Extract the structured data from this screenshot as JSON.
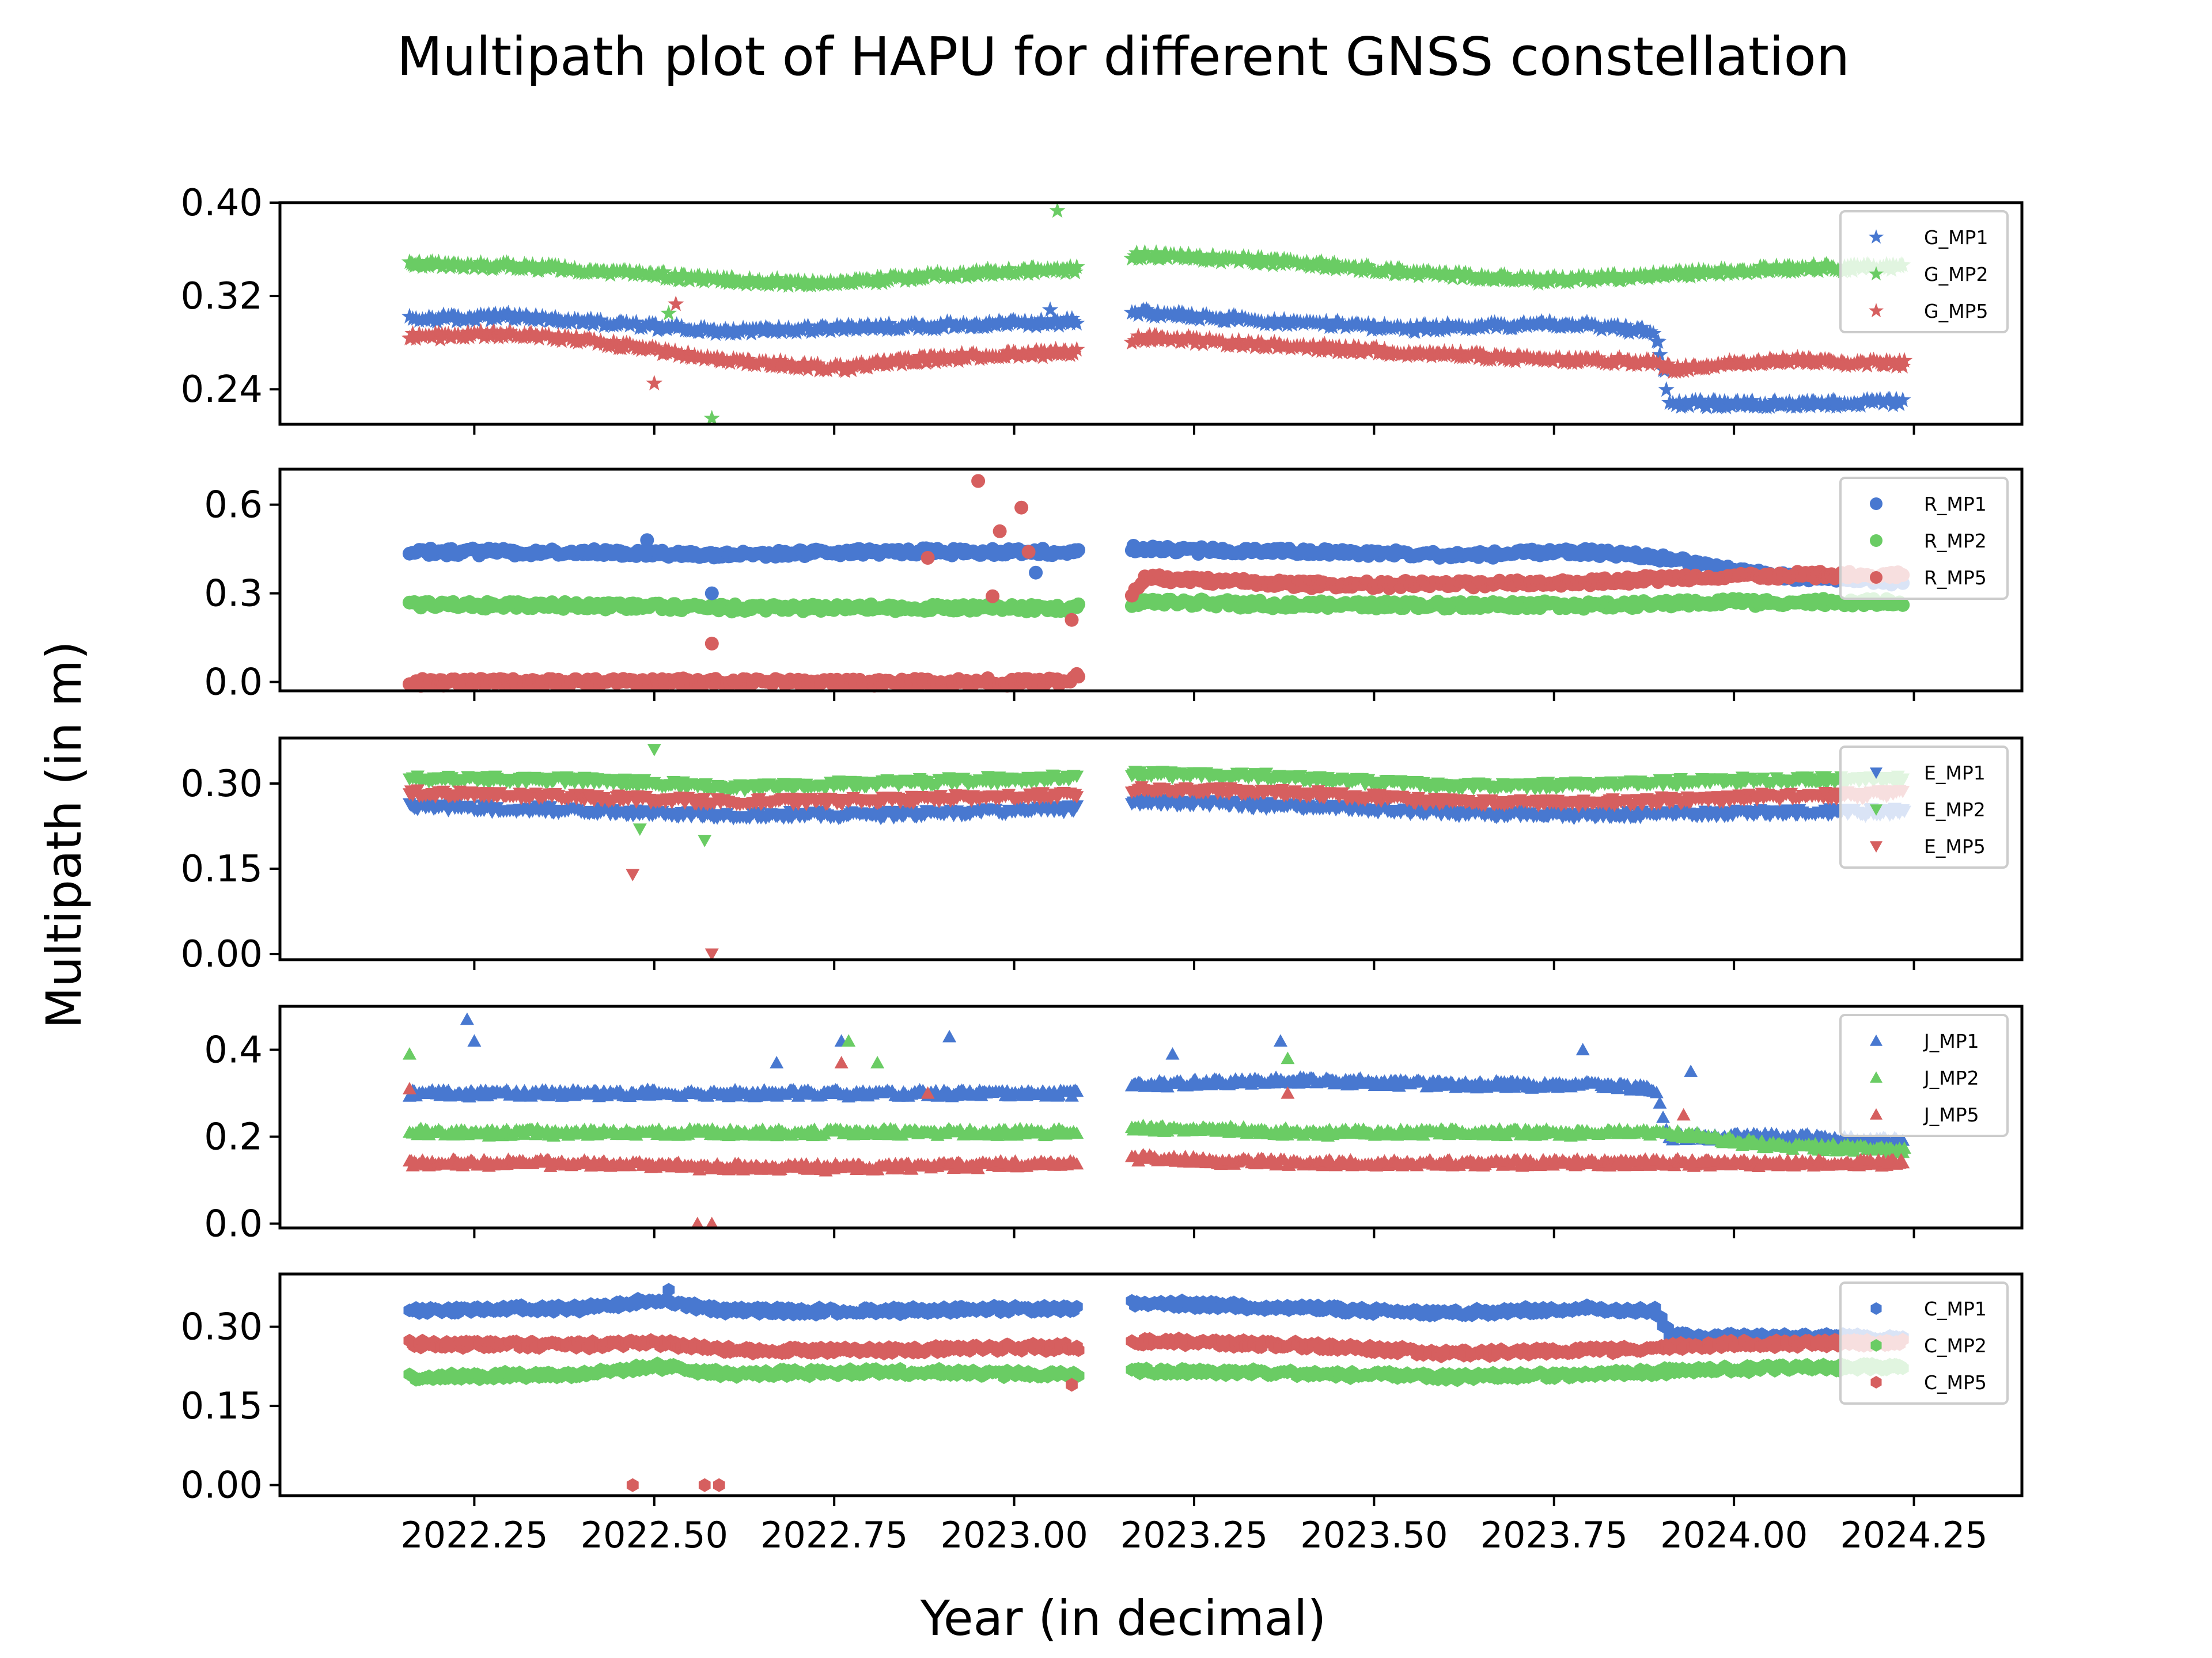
{
  "figure": {
    "title": "Multipath plot of HAPU for different GNSS constellation",
    "xlabel": "Year (in decimal)",
    "ylabel": "Multipath (in m)"
  },
  "colors": {
    "MP1": "#4878d0",
    "MP2": "#6acc64",
    "MP5": "#d65f5f"
  },
  "chart_data": [
    {
      "type": "scatter",
      "constellation": "G",
      "marker": "star",
      "xlim": [
        2021.98,
        2024.4
      ],
      "ylim": [
        0.21,
        0.4
      ],
      "yticks": [
        0.24,
        0.32,
        0.4
      ],
      "yticklabels": [
        "0.24",
        "0.32",
        "0.40"
      ],
      "legend": "top-right",
      "grid": false,
      "series": [
        {
          "name": "G_MP1",
          "key": "MP1",
          "x": [
            2022.17,
            2022.3,
            2022.45,
            2022.6,
            2022.75,
            2022.9,
            2023.08,
            2023.18,
            2023.35,
            2023.55,
            2023.75,
            2023.89,
            2023.91,
            2024.05,
            2024.23
          ],
          "y": [
            0.3,
            0.302,
            0.296,
            0.29,
            0.292,
            0.295,
            0.298,
            0.305,
            0.298,
            0.292,
            0.296,
            0.29,
            0.228,
            0.227,
            0.229
          ]
        },
        {
          "name": "G_MP2",
          "key": "MP2",
          "x": [
            2022.17,
            2022.3,
            2022.45,
            2022.6,
            2022.75,
            2022.9,
            2023.08,
            2023.18,
            2023.35,
            2023.55,
            2023.75,
            2023.9,
            2024.05,
            2024.23
          ],
          "y": [
            0.347,
            0.346,
            0.34,
            0.333,
            0.33,
            0.338,
            0.343,
            0.355,
            0.35,
            0.34,
            0.333,
            0.338,
            0.343,
            0.345
          ]
        },
        {
          "name": "G_MP5",
          "key": "MP5",
          "x": [
            2022.17,
            2022.3,
            2022.45,
            2022.6,
            2022.75,
            2022.9,
            2023.08,
            2023.18,
            2023.35,
            2023.55,
            2023.75,
            2023.89,
            2023.91,
            2024.05,
            2024.23
          ],
          "y": [
            0.285,
            0.288,
            0.278,
            0.264,
            0.258,
            0.267,
            0.272,
            0.284,
            0.278,
            0.271,
            0.265,
            0.263,
            0.257,
            0.265,
            0.262
          ]
        }
      ],
      "outliers": [
        {
          "key": "MP2",
          "x": 2023.06,
          "y": 0.393
        },
        {
          "key": "MP2",
          "x": 2022.58,
          "y": 0.215
        },
        {
          "key": "MP2",
          "x": 2022.52,
          "y": 0.305
        },
        {
          "key": "MP5",
          "x": 2022.53,
          "y": 0.313
        },
        {
          "key": "MP5",
          "x": 2022.5,
          "y": 0.245
        },
        {
          "key": "MP1",
          "x": 2023.05,
          "y": 0.308
        }
      ]
    },
    {
      "type": "scatter",
      "constellation": "R",
      "marker": "circle",
      "xlim": [
        2021.98,
        2024.4
      ],
      "ylim": [
        -0.03,
        0.72
      ],
      "yticks": [
        0.0,
        0.3,
        0.6
      ],
      "yticklabels": [
        "0.0",
        "0.3",
        "0.6"
      ],
      "legend": "top-right",
      "grid": false,
      "series": [
        {
          "name": "R_MP1",
          "key": "MP1",
          "x": [
            2022.17,
            2022.4,
            2022.6,
            2022.8,
            2023.08,
            2023.18,
            2023.4,
            2023.6,
            2023.8,
            2023.9,
            2024.05,
            2024.23
          ],
          "y": [
            0.44,
            0.44,
            0.43,
            0.44,
            0.44,
            0.45,
            0.44,
            0.43,
            0.44,
            0.42,
            0.36,
            0.34
          ]
        },
        {
          "name": "R_MP2",
          "key": "MP2",
          "x": [
            2022.17,
            2022.4,
            2022.6,
            2022.8,
            2023.08,
            2023.18,
            2023.4,
            2023.6,
            2023.8,
            2024.0,
            2024.23
          ],
          "y": [
            0.26,
            0.26,
            0.25,
            0.25,
            0.25,
            0.27,
            0.26,
            0.26,
            0.26,
            0.27,
            0.27
          ]
        },
        {
          "name": "R_MP5",
          "key": "MP5",
          "x": [
            2022.17,
            2022.4,
            2022.6,
            2022.8,
            2023.08,
            2023.18,
            2023.4,
            2023.6,
            2023.8,
            2024.0,
            2024.23
          ],
          "y": [
            0.0,
            0.0,
            0.0,
            0.0,
            0.0,
            0.35,
            0.33,
            0.33,
            0.34,
            0.36,
            0.36
          ]
        }
      ],
      "outliers": [
        {
          "key": "MP5",
          "x": 2022.95,
          "y": 0.68
        },
        {
          "key": "MP5",
          "x": 2023.01,
          "y": 0.59
        },
        {
          "key": "MP5",
          "x": 2022.98,
          "y": 0.51
        },
        {
          "key": "MP5",
          "x": 2023.02,
          "y": 0.44
        },
        {
          "key": "MP5",
          "x": 2022.88,
          "y": 0.42
        },
        {
          "key": "MP5",
          "x": 2022.97,
          "y": 0.29
        },
        {
          "key": "MP5",
          "x": 2022.58,
          "y": 0.13
        },
        {
          "key": "MP5",
          "x": 2023.08,
          "y": 0.21
        },
        {
          "key": "MP1",
          "x": 2022.49,
          "y": 0.48
        },
        {
          "key": "MP1",
          "x": 2022.58,
          "y": 0.3
        },
        {
          "key": "MP1",
          "x": 2023.03,
          "y": 0.37
        }
      ]
    },
    {
      "type": "scatter",
      "constellation": "E",
      "marker": "triangle-down",
      "xlim": [
        2021.98,
        2024.4
      ],
      "ylim": [
        -0.01,
        0.38
      ],
      "yticks": [
        0.0,
        0.15,
        0.3
      ],
      "yticklabels": [
        "0.00",
        "0.15",
        "0.30"
      ],
      "legend": "top-right",
      "grid": false,
      "series": [
        {
          "name": "E_MP1",
          "key": "MP1",
          "x": [
            2022.17,
            2022.4,
            2022.6,
            2022.8,
            2023.08,
            2023.18,
            2023.4,
            2023.6,
            2023.8,
            2024.0,
            2024.23
          ],
          "y": [
            0.259,
            0.252,
            0.244,
            0.245,
            0.255,
            0.268,
            0.26,
            0.248,
            0.245,
            0.248,
            0.25
          ]
        },
        {
          "name": "E_MP2",
          "key": "MP2",
          "x": [
            2022.17,
            2022.4,
            2022.6,
            2022.8,
            2023.08,
            2023.18,
            2023.4,
            2023.6,
            2023.8,
            2024.0,
            2024.23
          ],
          "y": [
            0.308,
            0.306,
            0.292,
            0.3,
            0.31,
            0.318,
            0.31,
            0.295,
            0.298,
            0.305,
            0.308
          ]
        },
        {
          "name": "E_MP5",
          "key": "MP5",
          "x": [
            2022.17,
            2022.4,
            2022.6,
            2022.8,
            2023.08,
            2023.18,
            2023.4,
            2023.6,
            2023.8,
            2024.0,
            2024.23
          ],
          "y": [
            0.282,
            0.276,
            0.268,
            0.27,
            0.28,
            0.29,
            0.282,
            0.268,
            0.265,
            0.275,
            0.282
          ]
        }
      ],
      "outliers": [
        {
          "key": "MP2",
          "x": 2022.5,
          "y": 0.36
        },
        {
          "key": "MP2",
          "x": 2022.57,
          "y": 0.2
        },
        {
          "key": "MP2",
          "x": 2022.48,
          "y": 0.22
        },
        {
          "key": "MP5",
          "x": 2022.47,
          "y": 0.14
        },
        {
          "key": "MP5",
          "x": 2022.58,
          "y": 0.0
        }
      ]
    },
    {
      "type": "scatter",
      "constellation": "J",
      "marker": "triangle-up",
      "xlim": [
        2021.98,
        2024.4
      ],
      "ylim": [
        -0.01,
        0.5
      ],
      "yticks": [
        0.0,
        0.2,
        0.4
      ],
      "yticklabels": [
        "0.0",
        "0.2",
        "0.4"
      ],
      "legend": "top-right",
      "grid": false,
      "series": [
        {
          "name": "J_MP1",
          "key": "MP1",
          "x": [
            2022.17,
            2022.4,
            2022.6,
            2022.8,
            2023.08,
            2023.18,
            2023.4,
            2023.6,
            2023.8,
            2023.89,
            2023.91,
            2024.05,
            2024.23
          ],
          "y": [
            0.3,
            0.3,
            0.3,
            0.3,
            0.3,
            0.32,
            0.33,
            0.32,
            0.32,
            0.31,
            0.2,
            0.2,
            0.19
          ]
        },
        {
          "name": "J_MP2",
          "key": "MP2",
          "x": [
            2022.17,
            2022.4,
            2022.6,
            2022.8,
            2023.08,
            2023.18,
            2023.4,
            2023.6,
            2023.8,
            2023.9,
            2024.05,
            2024.23
          ],
          "y": [
            0.21,
            0.21,
            0.21,
            0.21,
            0.21,
            0.22,
            0.21,
            0.21,
            0.21,
            0.21,
            0.18,
            0.17
          ]
        },
        {
          "name": "J_MP5",
          "key": "MP5",
          "x": [
            2022.17,
            2022.4,
            2022.6,
            2022.8,
            2023.08,
            2023.18,
            2023.4,
            2023.6,
            2023.8,
            2024.0,
            2024.23
          ],
          "y": [
            0.14,
            0.14,
            0.13,
            0.13,
            0.14,
            0.15,
            0.14,
            0.14,
            0.14,
            0.14,
            0.14
          ]
        }
      ],
      "outliers": [
        {
          "key": "MP1",
          "x": 2022.24,
          "y": 0.47
        },
        {
          "key": "MP1",
          "x": 2022.25,
          "y": 0.42
        },
        {
          "key": "MP1",
          "x": 2022.91,
          "y": 0.43
        },
        {
          "key": "MP1",
          "x": 2022.76,
          "y": 0.42
        },
        {
          "key": "MP1",
          "x": 2023.37,
          "y": 0.42
        },
        {
          "key": "MP1",
          "x": 2023.79,
          "y": 0.4
        },
        {
          "key": "MP1",
          "x": 2023.22,
          "y": 0.39
        },
        {
          "key": "MP1",
          "x": 2022.67,
          "y": 0.37
        },
        {
          "key": "MP1",
          "x": 2023.94,
          "y": 0.35
        },
        {
          "key": "MP2",
          "x": 2022.16,
          "y": 0.39
        },
        {
          "key": "MP2",
          "x": 2022.77,
          "y": 0.42
        },
        {
          "key": "MP2",
          "x": 2023.38,
          "y": 0.38
        },
        {
          "key": "MP2",
          "x": 2022.81,
          "y": 0.37
        },
        {
          "key": "MP5",
          "x": 2022.16,
          "y": 0.31
        },
        {
          "key": "MP5",
          "x": 2022.76,
          "y": 0.37
        },
        {
          "key": "MP5",
          "x": 2022.88,
          "y": 0.3
        },
        {
          "key": "MP5",
          "x": 2023.38,
          "y": 0.3
        },
        {
          "key": "MP5",
          "x": 2023.93,
          "y": 0.25
        },
        {
          "key": "MP5",
          "x": 2022.56,
          "y": 0.0
        },
        {
          "key": "MP5",
          "x": 2022.58,
          "y": 0.0
        }
      ]
    },
    {
      "type": "scatter",
      "constellation": "C",
      "marker": "hexagon",
      "xlim": [
        2021.98,
        2024.4
      ],
      "ylim": [
        -0.02,
        0.4
      ],
      "yticks": [
        0.0,
        0.15,
        0.3
      ],
      "yticklabels": [
        "0.00",
        "0.15",
        "0.30"
      ],
      "legend": "top-right",
      "grid": false,
      "series": [
        {
          "name": "C_MP1",
          "key": "MP1",
          "x": [
            2022.17,
            2022.4,
            2022.5,
            2022.6,
            2022.8,
            2023.08,
            2023.18,
            2023.4,
            2023.6,
            2023.8,
            2023.89,
            2023.91,
            2024.05,
            2024.23
          ],
          "y": [
            0.331,
            0.336,
            0.35,
            0.33,
            0.33,
            0.335,
            0.345,
            0.335,
            0.325,
            0.335,
            0.33,
            0.285,
            0.28,
            0.28
          ]
        },
        {
          "name": "C_MP2",
          "key": "MP2",
          "x": [
            2022.17,
            2022.4,
            2022.5,
            2022.6,
            2022.8,
            2023.08,
            2023.18,
            2023.4,
            2023.6,
            2023.8,
            2024.0,
            2024.23
          ],
          "y": [
            0.205,
            0.21,
            0.225,
            0.21,
            0.215,
            0.21,
            0.215,
            0.212,
            0.205,
            0.21,
            0.22,
            0.225
          ]
        },
        {
          "name": "C_MP5",
          "key": "MP5",
          "x": [
            2022.17,
            2022.4,
            2022.5,
            2022.6,
            2022.8,
            2023.08,
            2023.18,
            2023.4,
            2023.6,
            2023.8,
            2024.0,
            2024.23
          ],
          "y": [
            0.268,
            0.265,
            0.27,
            0.255,
            0.255,
            0.262,
            0.272,
            0.265,
            0.25,
            0.255,
            0.268,
            0.27
          ]
        }
      ],
      "outliers": [
        {
          "key": "MP1",
          "x": 2022.52,
          "y": 0.37
        },
        {
          "key": "MP5",
          "x": 2022.47,
          "y": 0.0
        },
        {
          "key": "MP5",
          "x": 2022.57,
          "y": 0.0
        },
        {
          "key": "MP5",
          "x": 2022.59,
          "y": 0.0
        },
        {
          "key": "MP5",
          "x": 2023.08,
          "y": 0.19
        }
      ]
    }
  ],
  "xaxis": {
    "ticks": [
      2022.25,
      2022.5,
      2022.75,
      2023.0,
      2023.25,
      2023.5,
      2023.75,
      2024.0,
      2024.25
    ],
    "ticklabels": [
      "2022.25",
      "2022.50",
      "2022.75",
      "2023.00",
      "2023.25",
      "2023.50",
      "2023.75",
      "2024.00",
      "2024.25"
    ],
    "data_start": 2022.16,
    "data_end": 2024.235,
    "gap": [
      2023.09,
      2023.16
    ]
  }
}
